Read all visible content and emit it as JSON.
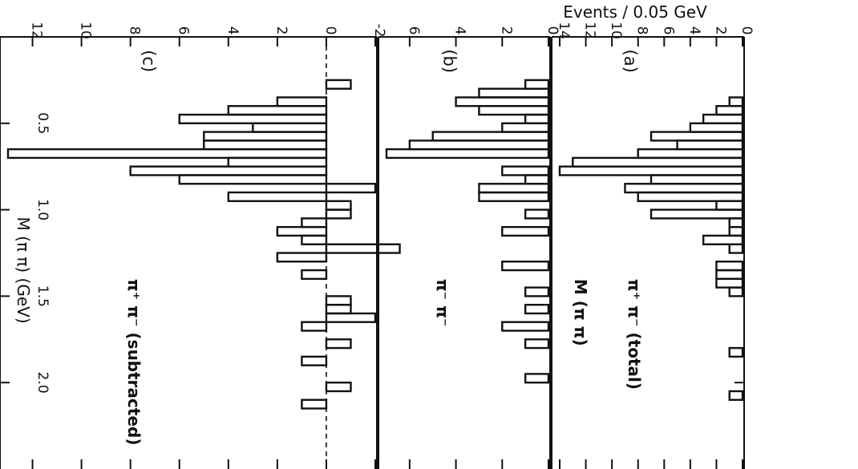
{
  "chart_data": {
    "type": "bar",
    "layout": "rotated-90",
    "shared_x": {
      "label": "M (π π)   (GeV)",
      "range": [
        0.0,
        2.5
      ],
      "ticks": [
        0.5,
        1.0,
        1.5,
        2.0
      ],
      "tick_labels": [
        "0.5",
        "1.0",
        "1.5",
        "2.0"
      ],
      "bin_width": 0.05
    },
    "shared_ylabel": "Events / 0.05 GeV",
    "x": [
      0.25,
      0.3,
      0.35,
      0.4,
      0.45,
      0.5,
      0.55,
      0.6,
      0.65,
      0.7,
      0.75,
      0.8,
      0.85,
      0.9,
      0.95,
      1.0,
      1.05,
      1.1,
      1.15,
      1.2,
      1.25,
      1.3,
      1.35,
      1.4,
      1.45,
      1.5,
      1.55,
      1.6,
      1.65,
      1.7,
      1.75,
      1.8,
      1.85,
      1.9,
      1.95,
      2.0,
      2.05,
      2.1,
      2.15
    ],
    "panels": [
      {
        "id": "a",
        "label": "(a)",
        "title_line1": "M (π π)",
        "title_line2": "π⁺ π⁻ (total)",
        "ylim": [
          0,
          14
        ],
        "yticks": [
          0,
          2,
          4,
          6,
          8,
          10,
          12,
          14
        ],
        "ytick_labels": [
          "0",
          "2",
          "4",
          "6",
          "8",
          "10",
          "12",
          "14"
        ],
        "values": [
          0,
          0,
          1,
          2,
          3,
          4,
          7,
          5,
          8,
          13,
          14,
          7,
          9,
          8,
          2,
          7,
          1,
          1,
          3,
          1,
          0,
          2,
          2,
          2,
          1,
          0,
          0,
          0,
          0,
          0,
          0,
          1,
          0,
          0,
          0,
          0,
          1,
          0,
          0
        ]
      },
      {
        "id": "b",
        "label": "(b)",
        "title_line1": "π⁻ π⁻",
        "ylim": [
          0,
          7
        ],
        "yticks": [
          0,
          2,
          4,
          6
        ],
        "ytick_labels": [
          "0",
          "2",
          "4",
          "6"
        ],
        "values": [
          1,
          3,
          4,
          3,
          1,
          2,
          5,
          6,
          7,
          0,
          2,
          1,
          3,
          3,
          0,
          1,
          0,
          2,
          0,
          0,
          0,
          2,
          0,
          0,
          1,
          0,
          1,
          0,
          2,
          0,
          1,
          0,
          0,
          0,
          1,
          0,
          0,
          0,
          0
        ]
      },
      {
        "id": "c",
        "label": "(c)",
        "title_line1": "π⁺ π⁻ (subtracted)",
        "ylim": [
          -2,
          13
        ],
        "yticks": [
          -2,
          0,
          2,
          4,
          6,
          8,
          10,
          12
        ],
        "ytick_labels": [
          "-2",
          "0",
          "2",
          "4",
          "6",
          "8",
          "10",
          "12"
        ],
        "values": [
          -1,
          0,
          2,
          4,
          6,
          3,
          5,
          5,
          13,
          4,
          8,
          6,
          -2,
          4,
          -1,
          -1,
          1,
          2,
          1,
          -3,
          2,
          0,
          1,
          0,
          0,
          -1,
          -1,
          -2,
          1,
          0,
          -1,
          0,
          1,
          0,
          0,
          -1,
          0,
          1,
          0
        ]
      }
    ]
  }
}
